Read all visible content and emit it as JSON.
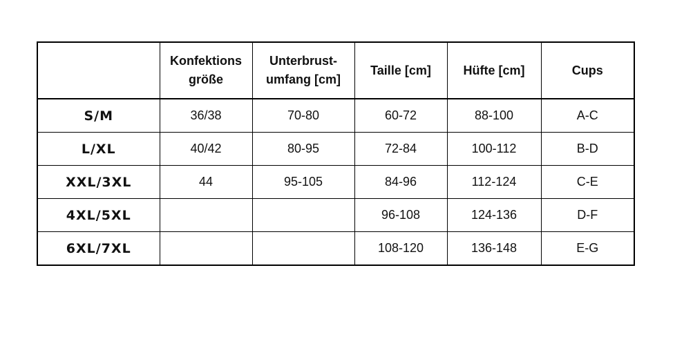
{
  "headers": [
    "",
    "Konfektions größe",
    "Unterbrust-umfang [cm]",
    "Taille [cm]",
    "Hüfte [cm]",
    "Cups"
  ],
  "header_lines": [
    [
      "",
      ""
    ],
    [
      "Konfektions",
      "größe"
    ],
    [
      "Unterbrust-",
      "umfang [cm]"
    ],
    [
      "Taille [cm]",
      ""
    ],
    [
      "Hüfte [cm]",
      ""
    ],
    [
      "Cups",
      ""
    ]
  ],
  "rows": [
    [
      "S/M",
      "36/38",
      "70-80",
      "60-72",
      "88-100",
      "A-C"
    ],
    [
      "L/XL",
      "40/42",
      "80-95",
      "72-84",
      "100-112",
      "B-D"
    ],
    [
      "XXL/3XL",
      "44",
      "95-105",
      "84-96",
      "112-124",
      "C-E"
    ],
    [
      "4XL/5XL",
      "",
      "",
      "96-108",
      "124-136",
      "D-F"
    ],
    [
      "6XL/7XL",
      "",
      "",
      "108-120",
      "136-148",
      "E-G"
    ]
  ]
}
